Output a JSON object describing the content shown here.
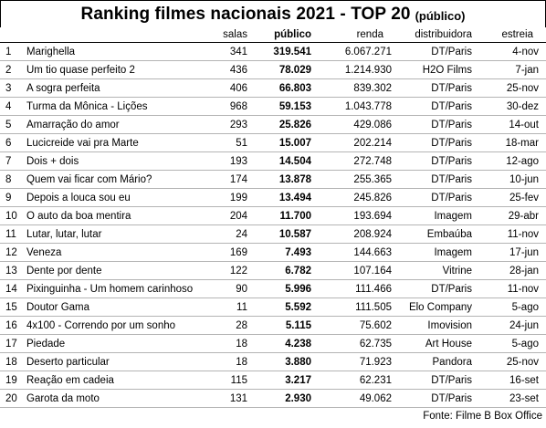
{
  "title": "Ranking filmes nacionais 2021 - TOP 20",
  "title_suffix": "(público)",
  "columns": {
    "salas": "salas",
    "publico": "público",
    "renda": "renda",
    "distribuidora": "distribuidora",
    "estreia": "estreia"
  },
  "rows": [
    {
      "pos": "1",
      "title": "Marighella",
      "salas": "341",
      "publico": "319.541",
      "renda": "6.067.271",
      "dist": "DT/Paris",
      "estreia": "4-nov"
    },
    {
      "pos": "2",
      "title": "Um tio quase perfeito 2",
      "salas": "436",
      "publico": "78.029",
      "renda": "1.214.930",
      "dist": "H2O Films",
      "estreia": "7-jan"
    },
    {
      "pos": "3",
      "title": "A sogra perfeita",
      "salas": "406",
      "publico": "66.803",
      "renda": "839.302",
      "dist": "DT/Paris",
      "estreia": "25-nov"
    },
    {
      "pos": "4",
      "title": "Turma da Mônica - Lições",
      "salas": "968",
      "publico": "59.153",
      "renda": "1.043.778",
      "dist": "DT/Paris",
      "estreia": "30-dez"
    },
    {
      "pos": "5",
      "title": "Amarração do amor",
      "salas": "293",
      "publico": "25.826",
      "renda": "429.086",
      "dist": "DT/Paris",
      "estreia": "14-out"
    },
    {
      "pos": "6",
      "title": "Lucicreide vai pra Marte",
      "salas": "51",
      "publico": "15.007",
      "renda": "202.214",
      "dist": "DT/Paris",
      "estreia": "18-mar"
    },
    {
      "pos": "7",
      "title": "Dois + dois",
      "salas": "193",
      "publico": "14.504",
      "renda": "272.748",
      "dist": "DT/Paris",
      "estreia": "12-ago"
    },
    {
      "pos": "8",
      "title": "Quem vai ficar com Mário?",
      "salas": "174",
      "publico": "13.878",
      "renda": "255.365",
      "dist": "DT/Paris",
      "estreia": "10-jun"
    },
    {
      "pos": "9",
      "title": "Depois a louca sou eu",
      "salas": "199",
      "publico": "13.494",
      "renda": "245.826",
      "dist": "DT/Paris",
      "estreia": "25-fev"
    },
    {
      "pos": "10",
      "title": "O auto da boa mentira",
      "salas": "204",
      "publico": "11.700",
      "renda": "193.694",
      "dist": "Imagem",
      "estreia": "29-abr"
    },
    {
      "pos": "11",
      "title": "Lutar, lutar, lutar",
      "salas": "24",
      "publico": "10.587",
      "renda": "208.924",
      "dist": "Embaúba",
      "estreia": "11-nov"
    },
    {
      "pos": "12",
      "title": "Veneza",
      "salas": "169",
      "publico": "7.493",
      "renda": "144.663",
      "dist": "Imagem",
      "estreia": "17-jun"
    },
    {
      "pos": "13",
      "title": "Dente por dente",
      "salas": "122",
      "publico": "6.782",
      "renda": "107.164",
      "dist": "Vitrine",
      "estreia": "28-jan"
    },
    {
      "pos": "14",
      "title": "Pixinguinha - Um homem carinhoso",
      "salas": "90",
      "publico": "5.996",
      "renda": "111.466",
      "dist": "DT/Paris",
      "estreia": "11-nov"
    },
    {
      "pos": "15",
      "title": "Doutor Gama",
      "salas": "11",
      "publico": "5.592",
      "renda": "111.505",
      "dist": "Elo Company",
      "estreia": "5-ago"
    },
    {
      "pos": "16",
      "title": "4x100 - Correndo por um sonho",
      "salas": "28",
      "publico": "5.115",
      "renda": "75.602",
      "dist": "Imovision",
      "estreia": "24-jun"
    },
    {
      "pos": "17",
      "title": "Piedade",
      "salas": "18",
      "publico": "4.238",
      "renda": "62.735",
      "dist": "Art House",
      "estreia": "5-ago"
    },
    {
      "pos": "18",
      "title": "Deserto particular",
      "salas": "18",
      "publico": "3.880",
      "renda": "71.923",
      "dist": "Pandora",
      "estreia": "25-nov"
    },
    {
      "pos": "19",
      "title": "Reação em cadeia",
      "salas": "115",
      "publico": "3.217",
      "renda": "62.231",
      "dist": "DT/Paris",
      "estreia": "16-set"
    },
    {
      "pos": "20",
      "title": "Garota da moto",
      "salas": "131",
      "publico": "2.930",
      "renda": "49.062",
      "dist": "DT/Paris",
      "estreia": "23-set"
    }
  ],
  "source": "Fonte: Filme B Box Office"
}
